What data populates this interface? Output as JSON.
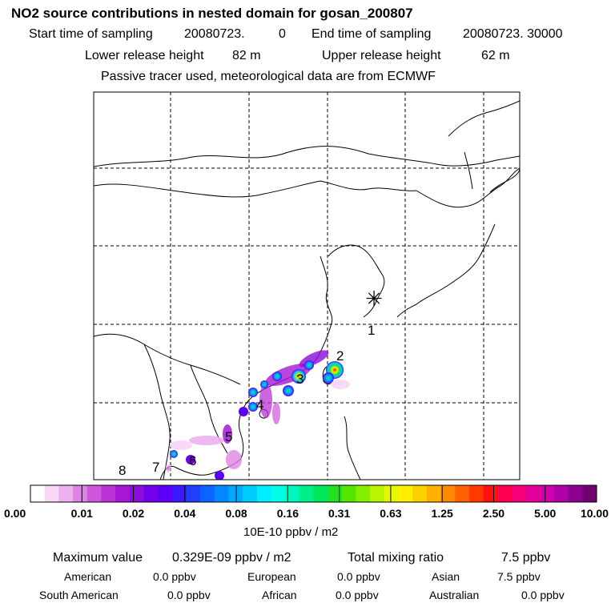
{
  "chart_data": {
    "type": "heatmap",
    "title": "NO2 source contributions in nested domain for gosan_200807",
    "header_lines": {
      "start_label": "Start time of sampling",
      "start_value": "20080723.",
      "start_hour": "0",
      "end_label": "End time of sampling",
      "end_value": "20080723. 30000",
      "lower_label": "Lower release height",
      "lower_value": "82 m",
      "upper_label": "Upper release height",
      "upper_value": "62 m",
      "note": "Passive tracer used, meteorological data are from ECMWF"
    },
    "colorbar": {
      "ticks": [
        "0.00",
        "0.01",
        "0.02",
        "0.04",
        "0.08",
        "0.16",
        "0.31",
        "0.63",
        "1.25",
        "2.50",
        "5.00",
        "10.00"
      ],
      "unit_label": "10E-10 ppbv / m2",
      "colors": [
        "#ffffff",
        "#f7d6f7",
        "#ecb1ee",
        "#df84e4",
        "#cf56db",
        "#bb33d6",
        "#a516d6",
        "#8d0bdc",
        "#7200e8",
        "#5b00f5",
        "#3d18ff",
        "#1f40ff",
        "#0a64ff",
        "#0088ff",
        "#00aaff",
        "#00ccff",
        "#00ecff",
        "#00ffe6",
        "#00f7bb",
        "#00ee8a",
        "#00e65a",
        "#22e022",
        "#55e600",
        "#88ee00",
        "#bbf400",
        "#e6f800",
        "#ffee00",
        "#ffd000",
        "#ffb000",
        "#ff8a00",
        "#ff6000",
        "#ff3800",
        "#ff1010",
        "#ff0050",
        "#f5007a",
        "#e5009a",
        "#d000aa",
        "#b000a8",
        "#8e0090",
        "#6e0070"
      ]
    },
    "receptor_marker": "✳",
    "map": {
      "grid": "dashed lat/lon lines",
      "source_labels": [
        "1",
        "2",
        "3",
        "4",
        "5",
        "6",
        "7",
        "8"
      ]
    },
    "stats": {
      "max_label": "Maximum value",
      "max_value": "0.329E-09 ppbv / m2",
      "total_label": "Total mixing ratio",
      "total_value": "7.5 ppbv"
    },
    "contributions": [
      {
        "name": "American",
        "value": "0.0 ppbv"
      },
      {
        "name": "European",
        "value": "0.0 ppbv"
      },
      {
        "name": "Asian",
        "value": "7.5 ppbv"
      },
      {
        "name": "South American",
        "value": "0.0 ppbv"
      },
      {
        "name": "African",
        "value": "0.0 ppbv"
      },
      {
        "name": "Australian",
        "value": "0.0 ppbv"
      }
    ]
  }
}
